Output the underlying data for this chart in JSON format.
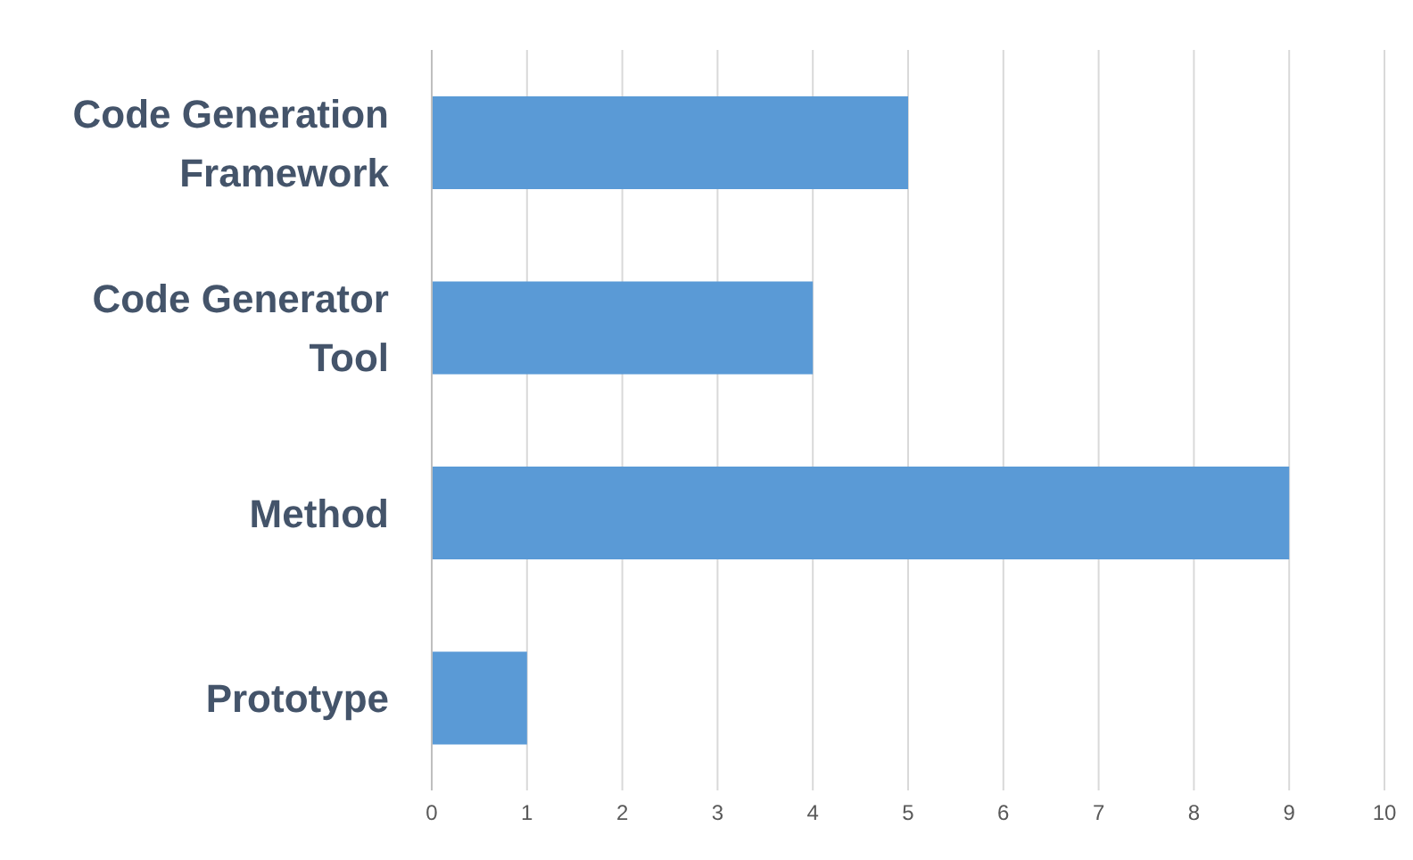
{
  "chart_data": {
    "type": "bar",
    "orientation": "horizontal",
    "categories": [
      "Code Generation Framework",
      "Code Generator Tool",
      "Method",
      "Prototype"
    ],
    "values": [
      5,
      4,
      9,
      1
    ],
    "color": "#5a9ad6",
    "xlim": [
      0,
      10
    ],
    "xticks": [
      0,
      1,
      2,
      3,
      4,
      5,
      6,
      7,
      8,
      9,
      10
    ],
    "grid": "x"
  }
}
